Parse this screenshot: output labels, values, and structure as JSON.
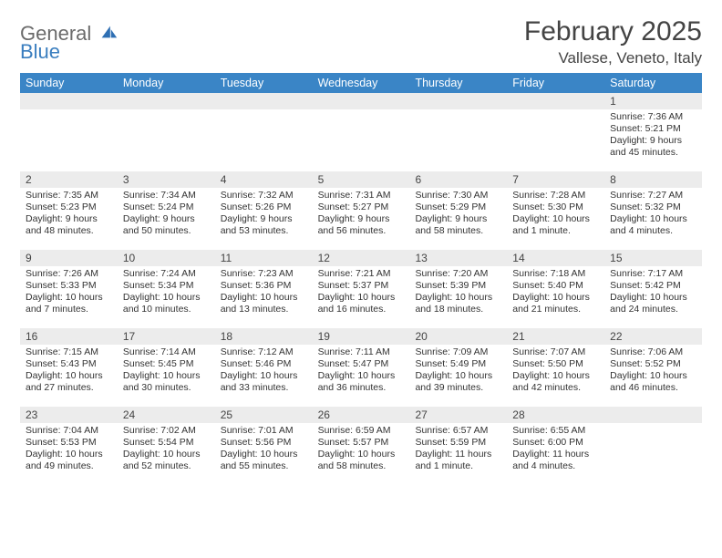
{
  "brand": {
    "general": "General",
    "blue": "Blue"
  },
  "title": "February 2025",
  "location": "Vallese, Veneto, Italy",
  "header_bg": "#3a85c6",
  "band_bg": "#ececec",
  "weekdays": [
    "Sunday",
    "Monday",
    "Tuesday",
    "Wednesday",
    "Thursday",
    "Friday",
    "Saturday"
  ],
  "weeks": [
    [
      null,
      null,
      null,
      null,
      null,
      null,
      {
        "n": "1",
        "sr": "7:36 AM",
        "ss": "5:21 PM",
        "dl": "9 hours and 45 minutes."
      }
    ],
    [
      {
        "n": "2",
        "sr": "7:35 AM",
        "ss": "5:23 PM",
        "dl": "9 hours and 48 minutes."
      },
      {
        "n": "3",
        "sr": "7:34 AM",
        "ss": "5:24 PM",
        "dl": "9 hours and 50 minutes."
      },
      {
        "n": "4",
        "sr": "7:32 AM",
        "ss": "5:26 PM",
        "dl": "9 hours and 53 minutes."
      },
      {
        "n": "5",
        "sr": "7:31 AM",
        "ss": "5:27 PM",
        "dl": "9 hours and 56 minutes."
      },
      {
        "n": "6",
        "sr": "7:30 AM",
        "ss": "5:29 PM",
        "dl": "9 hours and 58 minutes."
      },
      {
        "n": "7",
        "sr": "7:28 AM",
        "ss": "5:30 PM",
        "dl": "10 hours and 1 minute."
      },
      {
        "n": "8",
        "sr": "7:27 AM",
        "ss": "5:32 PM",
        "dl": "10 hours and 4 minutes."
      }
    ],
    [
      {
        "n": "9",
        "sr": "7:26 AM",
        "ss": "5:33 PM",
        "dl": "10 hours and 7 minutes."
      },
      {
        "n": "10",
        "sr": "7:24 AM",
        "ss": "5:34 PM",
        "dl": "10 hours and 10 minutes."
      },
      {
        "n": "11",
        "sr": "7:23 AM",
        "ss": "5:36 PM",
        "dl": "10 hours and 13 minutes."
      },
      {
        "n": "12",
        "sr": "7:21 AM",
        "ss": "5:37 PM",
        "dl": "10 hours and 16 minutes."
      },
      {
        "n": "13",
        "sr": "7:20 AM",
        "ss": "5:39 PM",
        "dl": "10 hours and 18 minutes."
      },
      {
        "n": "14",
        "sr": "7:18 AM",
        "ss": "5:40 PM",
        "dl": "10 hours and 21 minutes."
      },
      {
        "n": "15",
        "sr": "7:17 AM",
        "ss": "5:42 PM",
        "dl": "10 hours and 24 minutes."
      }
    ],
    [
      {
        "n": "16",
        "sr": "7:15 AM",
        "ss": "5:43 PM",
        "dl": "10 hours and 27 minutes."
      },
      {
        "n": "17",
        "sr": "7:14 AM",
        "ss": "5:45 PM",
        "dl": "10 hours and 30 minutes."
      },
      {
        "n": "18",
        "sr": "7:12 AM",
        "ss": "5:46 PM",
        "dl": "10 hours and 33 minutes."
      },
      {
        "n": "19",
        "sr": "7:11 AM",
        "ss": "5:47 PM",
        "dl": "10 hours and 36 minutes."
      },
      {
        "n": "20",
        "sr": "7:09 AM",
        "ss": "5:49 PM",
        "dl": "10 hours and 39 minutes."
      },
      {
        "n": "21",
        "sr": "7:07 AM",
        "ss": "5:50 PM",
        "dl": "10 hours and 42 minutes."
      },
      {
        "n": "22",
        "sr": "7:06 AM",
        "ss": "5:52 PM",
        "dl": "10 hours and 46 minutes."
      }
    ],
    [
      {
        "n": "23",
        "sr": "7:04 AM",
        "ss": "5:53 PM",
        "dl": "10 hours and 49 minutes."
      },
      {
        "n": "24",
        "sr": "7:02 AM",
        "ss": "5:54 PM",
        "dl": "10 hours and 52 minutes."
      },
      {
        "n": "25",
        "sr": "7:01 AM",
        "ss": "5:56 PM",
        "dl": "10 hours and 55 minutes."
      },
      {
        "n": "26",
        "sr": "6:59 AM",
        "ss": "5:57 PM",
        "dl": "10 hours and 58 minutes."
      },
      {
        "n": "27",
        "sr": "6:57 AM",
        "ss": "5:59 PM",
        "dl": "11 hours and 1 minute."
      },
      {
        "n": "28",
        "sr": "6:55 AM",
        "ss": "6:00 PM",
        "dl": "11 hours and 4 minutes."
      },
      null
    ]
  ],
  "labels": {
    "sunrise": "Sunrise:",
    "sunset": "Sunset:",
    "daylight": "Daylight:"
  }
}
